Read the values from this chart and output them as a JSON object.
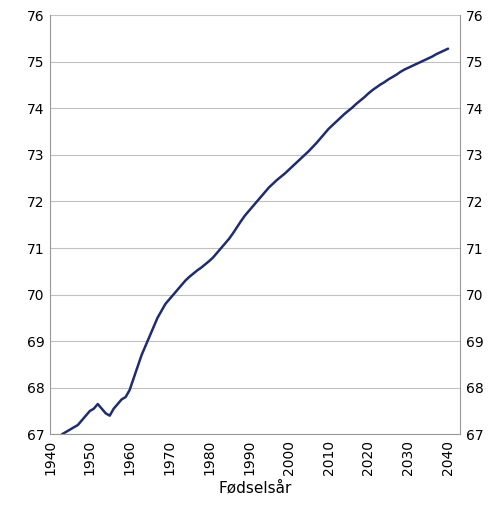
{
  "xlabel": "Fødselsår",
  "line_color": "#1f2d6e",
  "line_width": 1.8,
  "background_color": "#ffffff",
  "grid_color": "#c0c0c0",
  "xlim": [
    1940,
    2043
  ],
  "ylim": [
    67,
    76
  ],
  "xticks": [
    1940,
    1950,
    1960,
    1970,
    1980,
    1990,
    2000,
    2010,
    2020,
    2030,
    2040
  ],
  "yticks": [
    67,
    68,
    69,
    70,
    71,
    72,
    73,
    74,
    75,
    76
  ],
  "x": [
    1943,
    1944,
    1945,
    1946,
    1947,
    1948,
    1949,
    1950,
    1951,
    1952,
    1953,
    1954,
    1955,
    1956,
    1957,
    1958,
    1959,
    1960,
    1961,
    1962,
    1963,
    1964,
    1965,
    1966,
    1967,
    1968,
    1969,
    1970,
    1971,
    1972,
    1973,
    1974,
    1975,
    1976,
    1977,
    1978,
    1979,
    1980,
    1981,
    1982,
    1983,
    1984,
    1985,
    1986,
    1987,
    1988,
    1989,
    1990,
    1991,
    1992,
    1993,
    1994,
    1995,
    1996,
    1997,
    1998,
    1999,
    2000,
    2001,
    2002,
    2003,
    2004,
    2005,
    2006,
    2007,
    2008,
    2009,
    2010,
    2011,
    2012,
    2013,
    2014,
    2015,
    2016,
    2017,
    2018,
    2019,
    2020,
    2021,
    2022,
    2023,
    2024,
    2025,
    2026,
    2027,
    2028,
    2029,
    2030,
    2031,
    2032,
    2033,
    2034,
    2035,
    2036,
    2037,
    2038,
    2039,
    2040
  ],
  "y": [
    67.0,
    67.05,
    67.1,
    67.15,
    67.2,
    67.3,
    67.4,
    67.5,
    67.55,
    67.65,
    67.55,
    67.45,
    67.4,
    67.55,
    67.65,
    67.75,
    67.8,
    67.95,
    68.2,
    68.45,
    68.7,
    68.9,
    69.1,
    69.3,
    69.5,
    69.65,
    69.8,
    69.9,
    70.0,
    70.1,
    70.2,
    70.3,
    70.38,
    70.45,
    70.52,
    70.58,
    70.65,
    70.72,
    70.8,
    70.9,
    71.0,
    71.1,
    71.2,
    71.32,
    71.45,
    71.58,
    71.7,
    71.8,
    71.9,
    72.0,
    72.1,
    72.2,
    72.3,
    72.38,
    72.46,
    72.53,
    72.6,
    72.68,
    72.76,
    72.84,
    72.92,
    73.0,
    73.08,
    73.17,
    73.26,
    73.36,
    73.46,
    73.56,
    73.64,
    73.72,
    73.8,
    73.88,
    73.95,
    74.02,
    74.1,
    74.17,
    74.24,
    74.32,
    74.39,
    74.45,
    74.51,
    74.56,
    74.62,
    74.67,
    74.72,
    74.78,
    74.83,
    74.87,
    74.91,
    74.95,
    74.99,
    75.03,
    75.07,
    75.11,
    75.16,
    75.2,
    75.24,
    75.28
  ]
}
